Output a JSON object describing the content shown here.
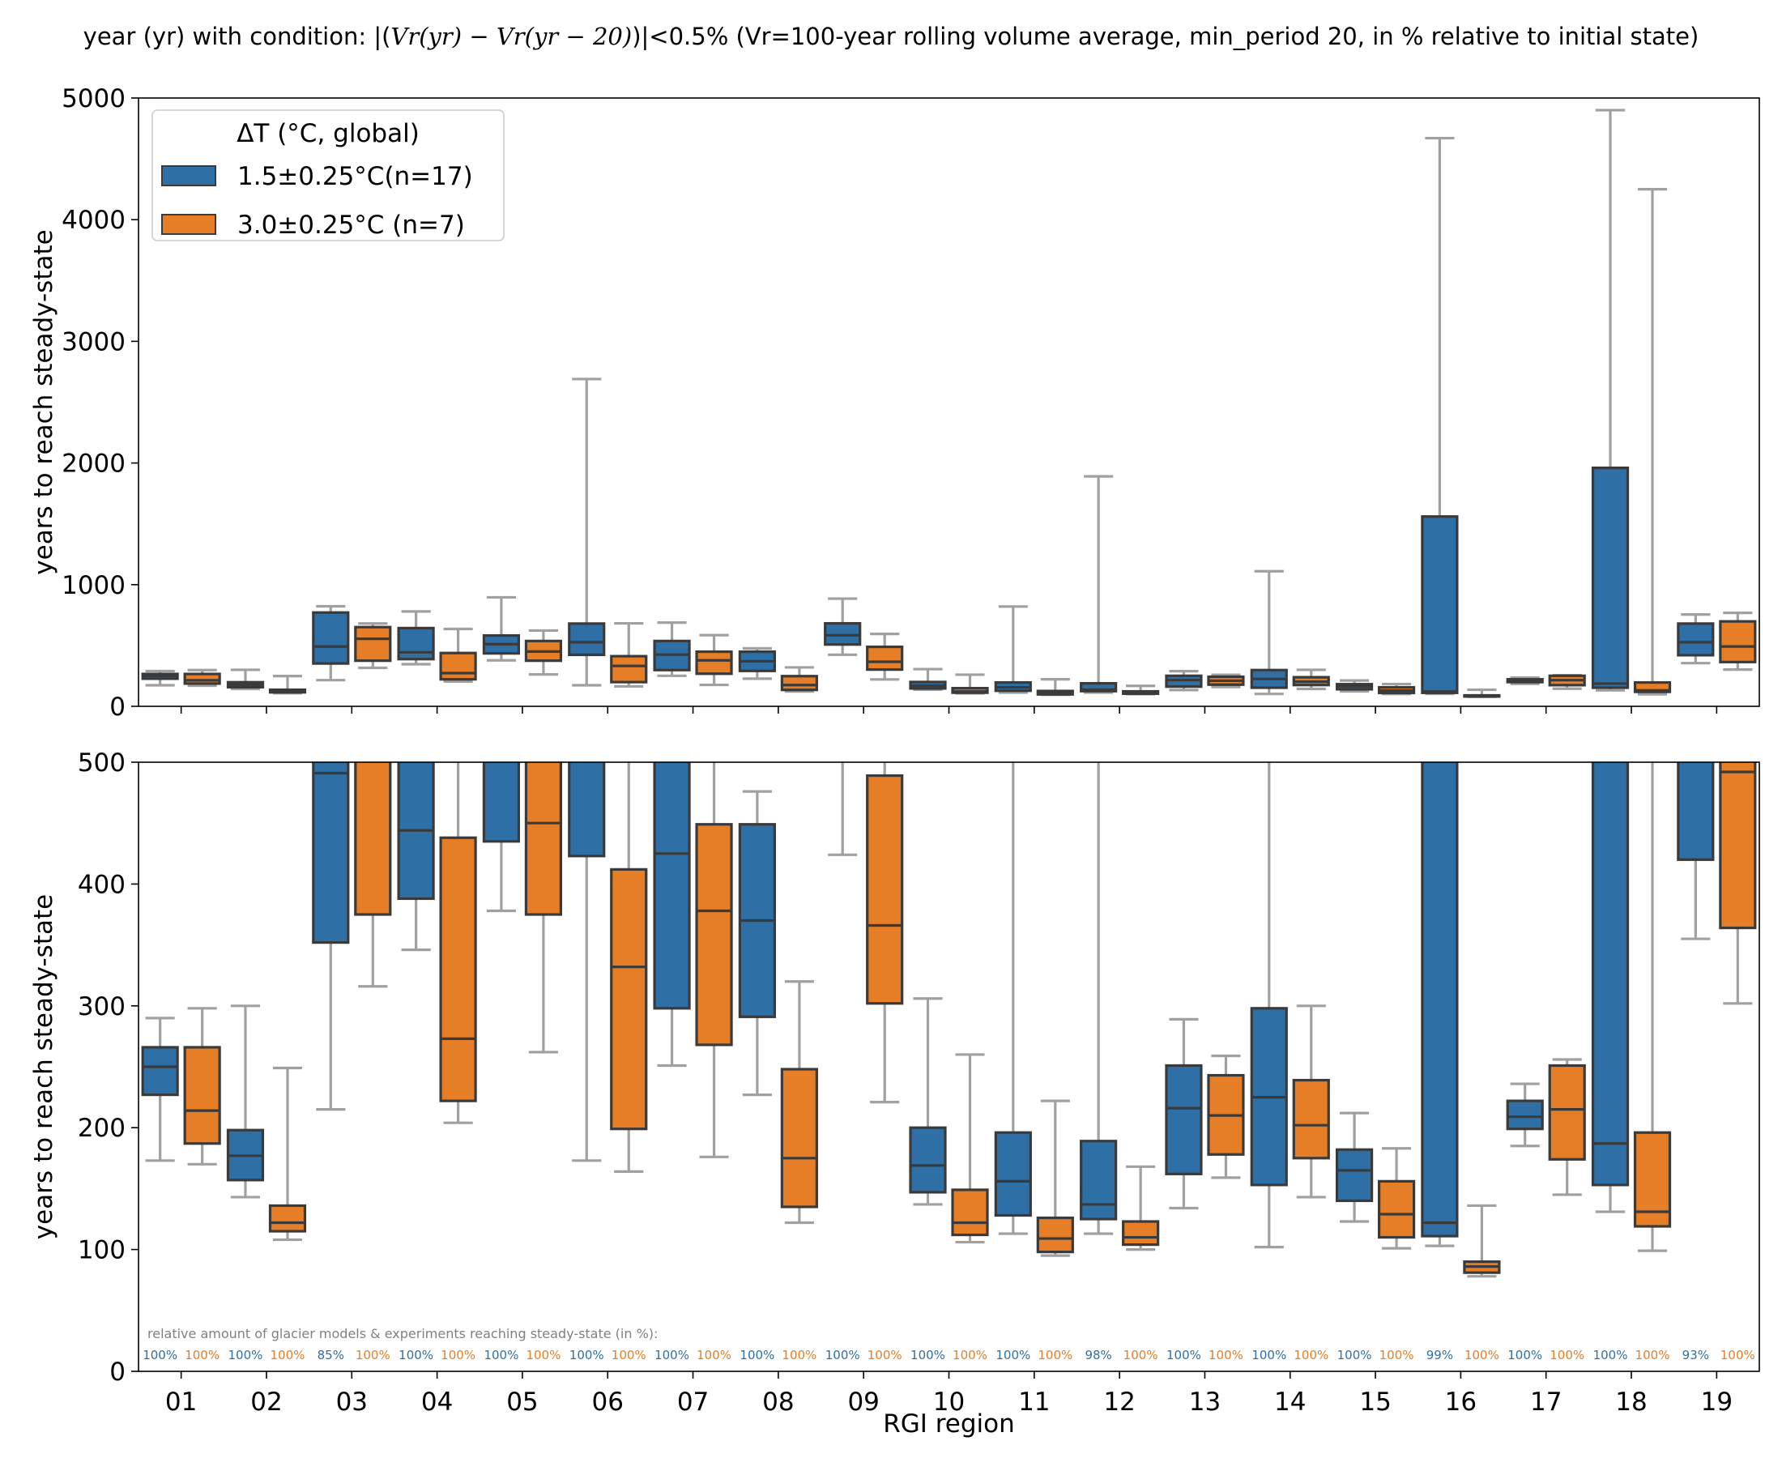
{
  "figure": {
    "title_prefix": "year (yr) with condition:  |(",
    "title_v1": "Vr(yr)",
    "title_minus": " − ",
    "title_v2": "Vr(yr − 20)",
    "title_suffix": ")|<0.5% (Vr=100-year rolling volume average, min_period 20, in % relative to initial state)"
  },
  "colors": {
    "s1": "#2e70a6",
    "s2": "#e57e26",
    "whisker": "#a0a0a0",
    "edge": "#3a3a3a",
    "note": "#808080"
  },
  "chart_data": [
    {
      "type": "box",
      "panel": "full range",
      "ylabel": "years to reach steady-state",
      "ylim": [
        0,
        5000
      ],
      "yticks": [
        0,
        1000,
        2000,
        3000,
        4000,
        5000
      ],
      "xlabel": "",
      "categories": [
        "01",
        "02",
        "03",
        "04",
        "05",
        "06",
        "07",
        "08",
        "09",
        "10",
        "11",
        "12",
        "13",
        "14",
        "15",
        "16",
        "17",
        "18",
        "19"
      ],
      "legend": {
        "title": "ΔT (°C, global)",
        "position": "top-left"
      }
    },
    {
      "type": "box",
      "panel": "zoom",
      "ylabel": "years to reach steady-state",
      "ylim": [
        0,
        500
      ],
      "yticks": [
        0,
        100,
        200,
        300,
        400,
        500
      ],
      "xlabel": "RGI region",
      "categories": [
        "01",
        "02",
        "03",
        "04",
        "05",
        "06",
        "07",
        "08",
        "09",
        "10",
        "11",
        "12",
        "13",
        "14",
        "15",
        "16",
        "17",
        "18",
        "19"
      ],
      "note": "relative amount of glacier models & experiments reaching steady-state (in %):"
    }
  ],
  "series": [
    {
      "name": "1.5±0.25°C(n=17)",
      "color": "#2e70a6",
      "stats": [
        {
          "wlo": 173,
          "q1": 227,
          "med": 250,
          "q3": 266,
          "whi": 290
        },
        {
          "wlo": 143,
          "q1": 157,
          "med": 177,
          "q3": 198,
          "whi": 300
        },
        {
          "wlo": 215,
          "q1": 352,
          "med": 491,
          "q3": 771,
          "whi": 822
        },
        {
          "wlo": 346,
          "q1": 388,
          "med": 444,
          "q3": 643,
          "whi": 780
        },
        {
          "wlo": 378,
          "q1": 435,
          "med": 511,
          "q3": 582,
          "whi": 896
        },
        {
          "wlo": 173,
          "q1": 423,
          "med": 527,
          "q3": 680,
          "whi": 2690
        },
        {
          "wlo": 251,
          "q1": 298,
          "med": 425,
          "q3": 537,
          "whi": 688
        },
        {
          "wlo": 227,
          "q1": 291,
          "med": 370,
          "q3": 449,
          "whi": 476
        },
        {
          "wlo": 424,
          "q1": 508,
          "med": 584,
          "q3": 682,
          "whi": 885
        },
        {
          "wlo": 137,
          "q1": 147,
          "med": 169,
          "q3": 200,
          "whi": 306
        },
        {
          "wlo": 113,
          "q1": 128,
          "med": 156,
          "q3": 196,
          "whi": 820
        },
        {
          "wlo": 113,
          "q1": 125,
          "med": 137,
          "q3": 189,
          "whi": 1890
        },
        {
          "wlo": 134,
          "q1": 162,
          "med": 216,
          "q3": 251,
          "whi": 289
        },
        {
          "wlo": 102,
          "q1": 153,
          "med": 225,
          "q3": 298,
          "whi": 1110
        },
        {
          "wlo": 123,
          "q1": 140,
          "med": 165,
          "q3": 182,
          "whi": 212
        },
        {
          "wlo": 103,
          "q1": 111,
          "med": 122,
          "q3": 1560,
          "whi": 4670
        },
        {
          "wlo": 185,
          "q1": 199,
          "med": 209,
          "q3": 222,
          "whi": 236
        },
        {
          "wlo": 131,
          "q1": 153,
          "med": 187,
          "q3": 1960,
          "whi": 4900
        },
        {
          "wlo": 355,
          "q1": 420,
          "med": 527,
          "q3": 680,
          "whi": 755
        }
      ],
      "percent": [
        "100%",
        "100%",
        "85%",
        "100%",
        "100%",
        "100%",
        "100%",
        "100%",
        "100%",
        "100%",
        "100%",
        "98%",
        "100%",
        "100%",
        "100%",
        "99%",
        "100%",
        "100%",
        "93%"
      ]
    },
    {
      "name": "3.0±0.25°C (n=7)",
      "color": "#e57e26",
      "stats": [
        {
          "wlo": 170,
          "q1": 187,
          "med": 214,
          "q3": 266,
          "whi": 298
        },
        {
          "wlo": 108,
          "q1": 115,
          "med": 122,
          "q3": 136,
          "whi": 249
        },
        {
          "wlo": 316,
          "q1": 375,
          "med": 555,
          "q3": 651,
          "whi": 681
        },
        {
          "wlo": 204,
          "q1": 222,
          "med": 273,
          "q3": 438,
          "whi": 636
        },
        {
          "wlo": 262,
          "q1": 375,
          "med": 450,
          "q3": 537,
          "whi": 623
        },
        {
          "wlo": 164,
          "q1": 199,
          "med": 332,
          "q3": 412,
          "whi": 682
        },
        {
          "wlo": 176,
          "q1": 268,
          "med": 378,
          "q3": 449,
          "whi": 585
        },
        {
          "wlo": 122,
          "q1": 135,
          "med": 175,
          "q3": 248,
          "whi": 320
        },
        {
          "wlo": 221,
          "q1": 302,
          "med": 366,
          "q3": 489,
          "whi": 595
        },
        {
          "wlo": 106,
          "q1": 112,
          "med": 122,
          "q3": 149,
          "whi": 260
        },
        {
          "wlo": 95,
          "q1": 98,
          "med": 109,
          "q3": 126,
          "whi": 222
        },
        {
          "wlo": 100,
          "q1": 104,
          "med": 110,
          "q3": 123,
          "whi": 168
        },
        {
          "wlo": 159,
          "q1": 178,
          "med": 210,
          "q3": 243,
          "whi": 259
        },
        {
          "wlo": 143,
          "q1": 175,
          "med": 202,
          "q3": 239,
          "whi": 300
        },
        {
          "wlo": 101,
          "q1": 110,
          "med": 129,
          "q3": 156,
          "whi": 183
        },
        {
          "wlo": 78,
          "q1": 81,
          "med": 86,
          "q3": 90,
          "whi": 136
        },
        {
          "wlo": 145,
          "q1": 174,
          "med": 215,
          "q3": 251,
          "whi": 256
        },
        {
          "wlo": 99,
          "q1": 119,
          "med": 131,
          "q3": 196,
          "whi": 4250
        },
        {
          "wlo": 302,
          "q1": 364,
          "med": 492,
          "q3": 698,
          "whi": 768
        }
      ],
      "percent": [
        "100%",
        "100%",
        "100%",
        "100%",
        "100%",
        "100%",
        "100%",
        "100%",
        "100%",
        "100%",
        "100%",
        "100%",
        "100%",
        "100%",
        "100%",
        "100%",
        "100%",
        "100%",
        "100%"
      ]
    }
  ]
}
